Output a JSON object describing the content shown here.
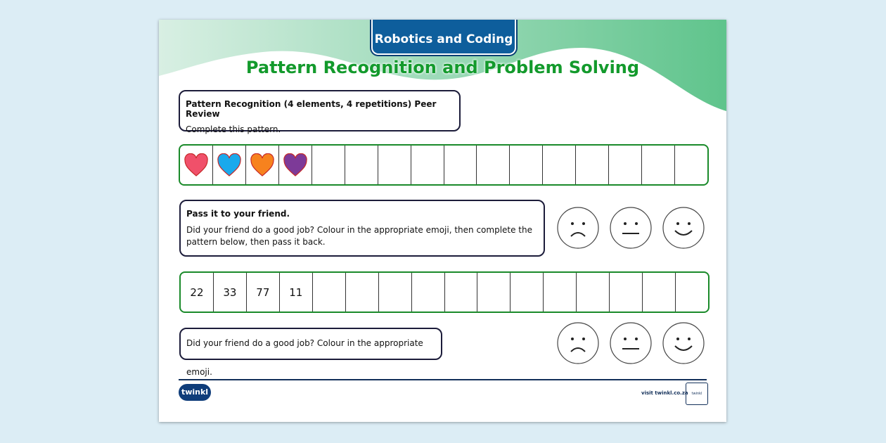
{
  "header": {
    "tag": "Robotics and Coding",
    "title": "Pattern Recognition and Problem Solving"
  },
  "box1": {
    "heading": "Pattern Recognition (4 elements, 4 repetitions) Peer Review",
    "text": "Complete this pattern."
  },
  "row1": {
    "hearts": [
      "#f0506a",
      "#1aa9ec",
      "#f7821e",
      "#7d3a98"
    ],
    "cells": 16
  },
  "box2": {
    "heading": "Pass it to your friend.",
    "text": "Did your friend do a good job?  Colour in the appropriate emoji, then complete the pattern below, then pass it back."
  },
  "row2": {
    "values": [
      "22",
      "33",
      "77",
      "11"
    ],
    "cells": 16
  },
  "box3": {
    "text": "Did your friend do a good job?  Colour in the appropriate emoji."
  },
  "emojis": [
    "sad-face-icon",
    "neutral-face-icon",
    "happy-face-icon"
  ],
  "footer": {
    "logo": "twinkl",
    "visit": "visit twinkl.co.za",
    "badge": "twinkl"
  }
}
